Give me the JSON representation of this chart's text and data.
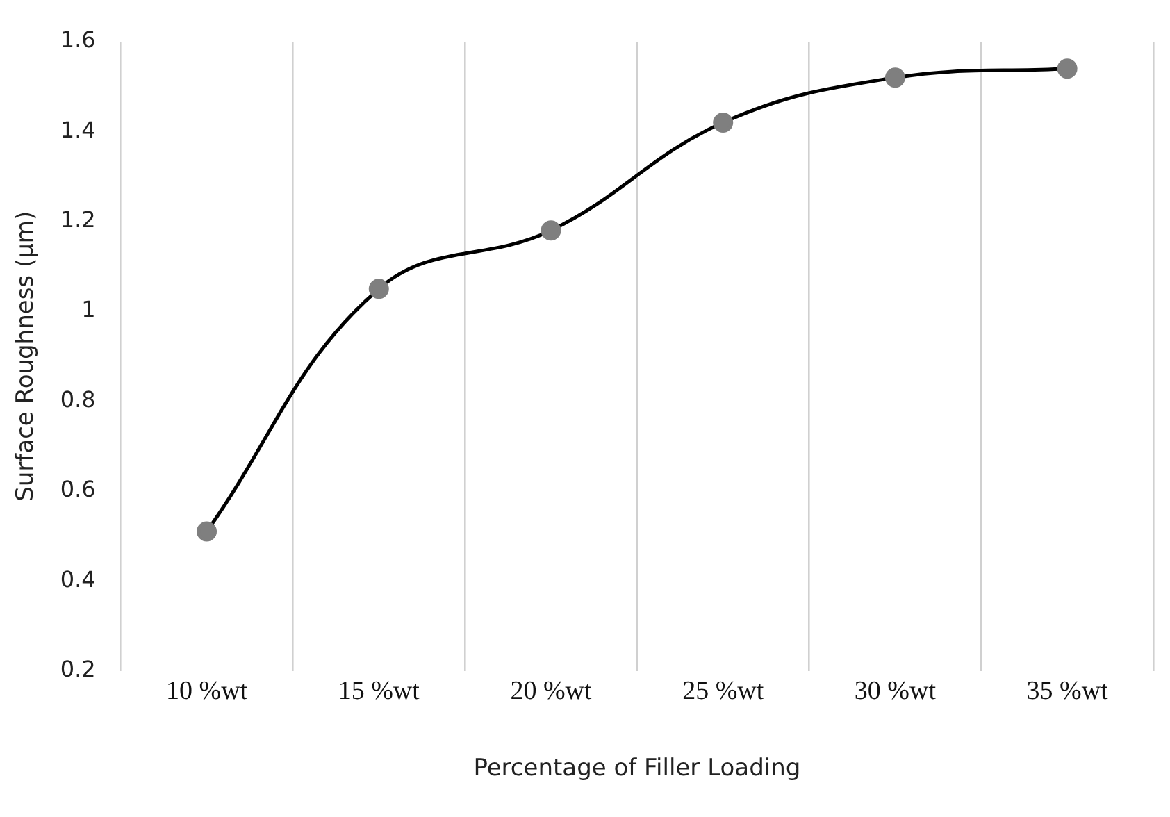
{
  "chart_data": {
    "type": "line",
    "xlabel": "Percentage of Filler Loading",
    "ylabel": "Surface Roughness (µm)",
    "categories": [
      "10 %wt",
      "15 %wt",
      "20 %wt",
      "25 %wt",
      "30 %wt",
      "35 %wt"
    ],
    "series": [
      {
        "color": "#000000",
        "values": [
          0.51,
          1.05,
          1.18,
          1.42,
          1.52,
          1.54
        ]
      }
    ],
    "ylim": [
      0.2,
      1.6
    ],
    "yticks": [
      0.2,
      0.4,
      0.6,
      0.8,
      1,
      1.2,
      1.4,
      1.6
    ],
    "grid": "x",
    "marker": "circle",
    "line_style": "solid",
    "legend": false
  }
}
